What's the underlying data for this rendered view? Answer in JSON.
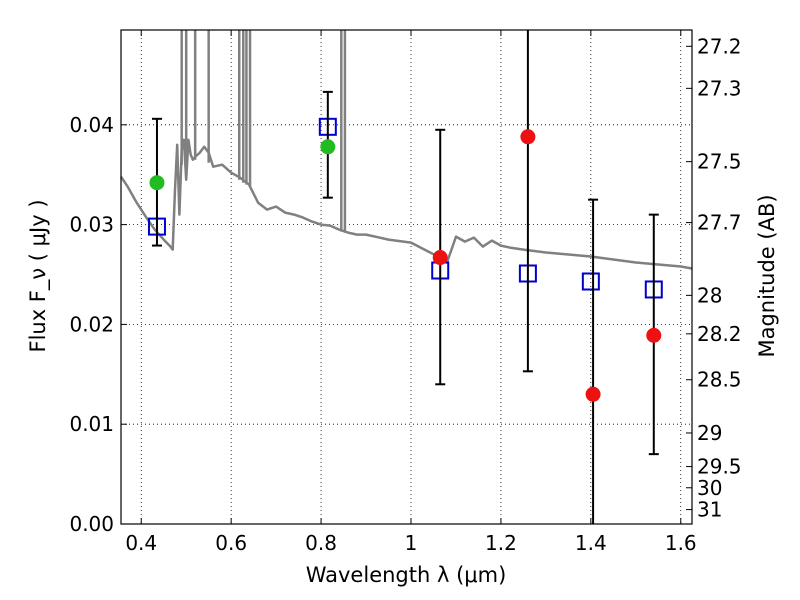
{
  "chart_data": {
    "type": "scatter",
    "xlabel": "Wavelength  λ (μm)",
    "ylabel": "Flux  F_ν  ( μJy )",
    "ylabel_right": "Magnitude (AB)",
    "xlim": [
      0.355,
      1.625
    ],
    "ylim": [
      0.0,
      0.0495
    ],
    "grid": true,
    "x_ticks": [
      {
        "value": 0.4,
        "label": "0.4"
      },
      {
        "value": 0.6,
        "label": "0.6"
      },
      {
        "value": 0.8,
        "label": "0.8"
      },
      {
        "value": 1.0,
        "label": "1"
      },
      {
        "value": 1.2,
        "label": "1.2"
      },
      {
        "value": 1.4,
        "label": "1.4"
      },
      {
        "value": 1.6,
        "label": "1.6"
      }
    ],
    "y_ticks": [
      {
        "value": 0.0,
        "label": "0.00"
      },
      {
        "value": 0.01,
        "label": "0.01"
      },
      {
        "value": 0.02,
        "label": "0.02"
      },
      {
        "value": 0.03,
        "label": "0.03"
      },
      {
        "value": 0.04,
        "label": "0.04"
      }
    ],
    "right_ticks": [
      {
        "value": 27.2,
        "label": "27.2"
      },
      {
        "value": 27.3,
        "label": "27.3"
      },
      {
        "value": 27.5,
        "label": "27.5"
      },
      {
        "value": 27.7,
        "label": "27.7"
      },
      {
        "value": 28.0,
        "label": "28"
      },
      {
        "value": 28.2,
        "label": "28.2"
      },
      {
        "value": 28.5,
        "label": "28.5"
      },
      {
        "value": 29.0,
        "label": "29"
      },
      {
        "value": 29.5,
        "label": "29.5"
      },
      {
        "value": 30.0,
        "label": "30"
      },
      {
        "value": 31.0,
        "label": "31"
      }
    ],
    "colors": {
      "model": "#808080",
      "model_photometry": "#0000cc",
      "observed_green": "#22bb22",
      "observed_red": "#ee1111",
      "errorbar": "#000000",
      "grid": "#000000"
    },
    "series": [
      {
        "kind": "line",
        "x": [
          0.355,
          0.37,
          0.39,
          0.41,
          0.43,
          0.45,
          0.465,
          0.47,
          0.475,
          0.48,
          0.485,
          0.49,
          0.495,
          0.5,
          0.505,
          0.51,
          0.515,
          0.52,
          0.53,
          0.54,
          0.55,
          0.56,
          0.58,
          0.6,
          0.62,
          0.64,
          0.66,
          0.68,
          0.7,
          0.72,
          0.74,
          0.76,
          0.78,
          0.8,
          0.82,
          0.84,
          0.86,
          0.88,
          0.9,
          0.95,
          1.0,
          1.03,
          1.06,
          1.08,
          1.1,
          1.12,
          1.14,
          1.16,
          1.18,
          1.2,
          1.22,
          1.25,
          1.3,
          1.35,
          1.4,
          1.45,
          1.5,
          1.55,
          1.6,
          1.625
        ],
        "y": [
          0.0348,
          0.0338,
          0.0322,
          0.0308,
          0.0295,
          0.0285,
          0.0278,
          0.0275,
          0.0335,
          0.038,
          0.031,
          0.0375,
          0.0385,
          0.0345,
          0.0385,
          0.037,
          0.0365,
          0.0368,
          0.0372,
          0.0378,
          0.0372,
          0.0358,
          0.036,
          0.0352,
          0.0347,
          0.034,
          0.0322,
          0.0315,
          0.0318,
          0.0312,
          0.031,
          0.0307,
          0.0303,
          0.03,
          0.0299,
          0.0295,
          0.0292,
          0.029,
          0.029,
          0.0285,
          0.0282,
          0.0275,
          0.0268,
          0.0262,
          0.0288,
          0.0283,
          0.0287,
          0.0278,
          0.0284,
          0.0279,
          0.0277,
          0.0275,
          0.0272,
          0.027,
          0.0268,
          0.0265,
          0.0262,
          0.026,
          0.0258,
          0.0256
        ]
      },
      {
        "kind": "line_spikes",
        "x": [
          0.49,
          0.5,
          0.52,
          0.55,
          0.618,
          0.627,
          0.634,
          0.642,
          0.845,
          0.853
        ],
        "y_from": [
          0.036,
          0.0355,
          0.0365,
          0.0362,
          0.0345,
          0.0342,
          0.034,
          0.0338,
          0.0293,
          0.0292
        ]
      },
      {
        "kind": "open_square",
        "x": [
          0.435,
          0.815,
          1.065,
          1.26,
          1.4,
          1.54
        ],
        "y": [
          0.0298,
          0.0398,
          0.0254,
          0.0251,
          0.0243,
          0.0235
        ]
      },
      {
        "kind": "errorbar",
        "x": [
          0.435,
          0.815,
          1.065,
          1.26,
          1.405,
          1.54
        ],
        "low": [
          0.0279,
          0.0327,
          0.014,
          0.0153,
          0.0,
          0.007
        ],
        "high": [
          0.0406,
          0.0433,
          0.0395,
          0.0495,
          0.0325,
          0.031
        ]
      },
      {
        "kind": "filled_circle_green",
        "x": [
          0.435,
          0.815
        ],
        "y": [
          0.0342,
          0.0378
        ]
      },
      {
        "kind": "filled_circle_red",
        "x": [
          1.065,
          1.26,
          1.405,
          1.54
        ],
        "y": [
          0.0267,
          0.0388,
          0.013,
          0.0189
        ]
      }
    ]
  }
}
